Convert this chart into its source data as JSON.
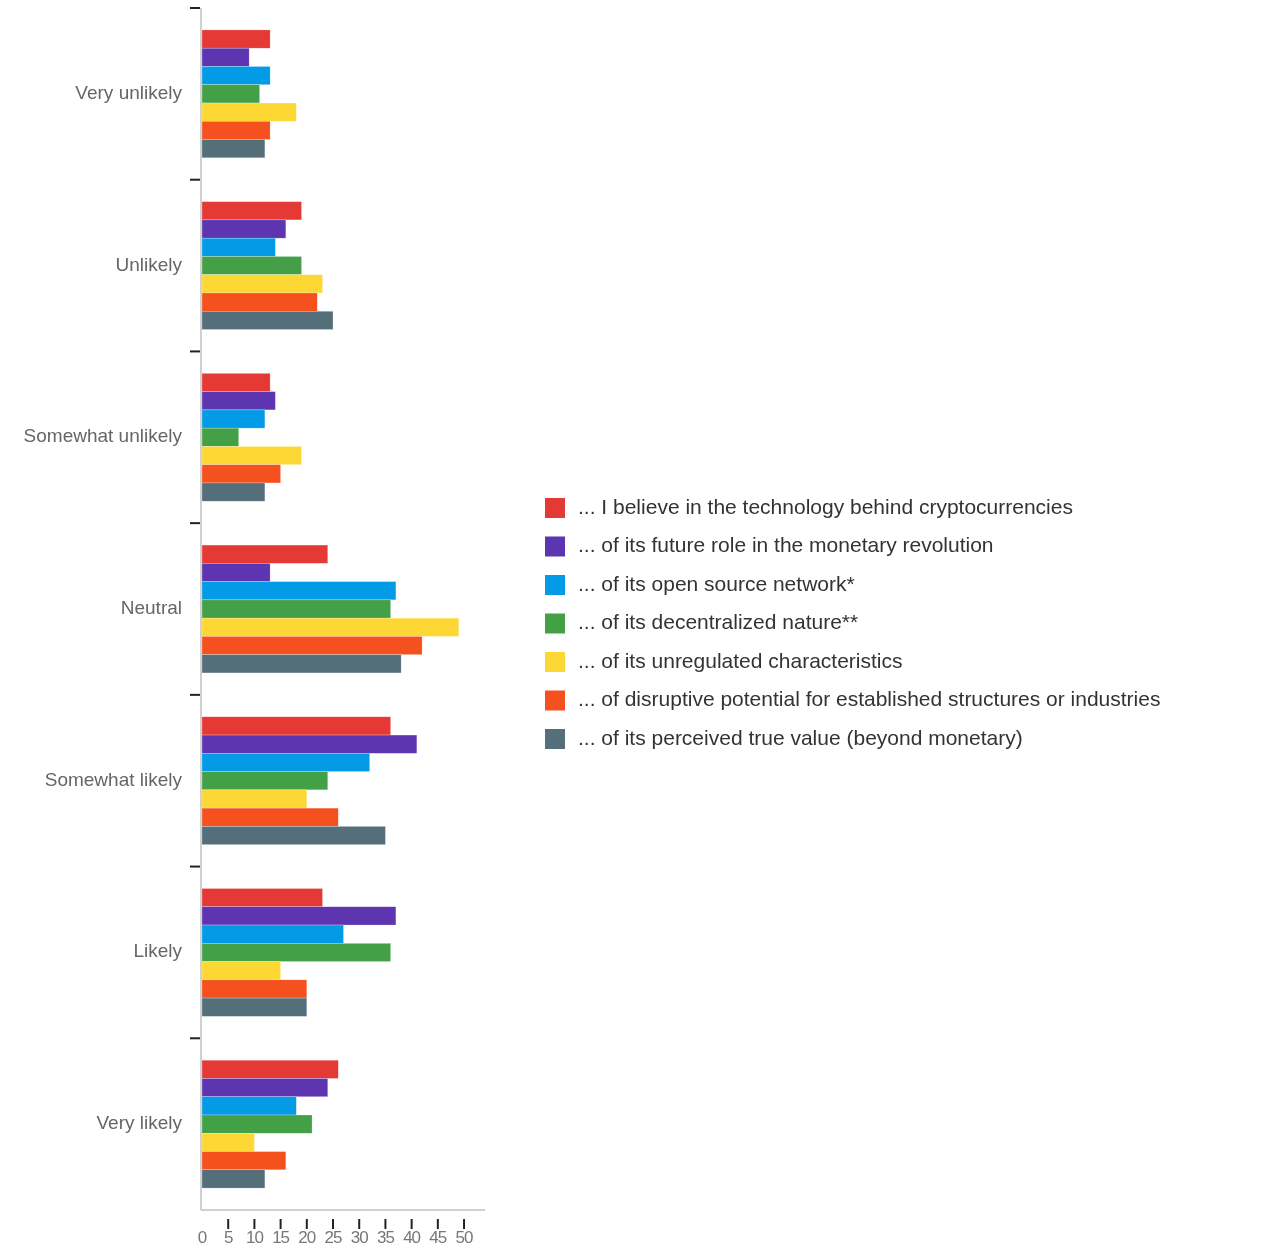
{
  "chart_data": {
    "type": "bar",
    "orientation": "horizontal",
    "categories": [
      "Very unlikely",
      "Unlikely",
      "Somewhat unlikely",
      "Neutral",
      "Somewhat likely",
      "Likely",
      "Very likely"
    ],
    "series": [
      {
        "name": "... I believe in the technology behind cryptocurrencies",
        "color": "#e53935",
        "values": [
          13,
          19,
          13,
          24,
          36,
          23,
          26
        ]
      },
      {
        "name": "... of its future role in the monetary revolution",
        "color": "#5e35b1",
        "values": [
          9,
          16,
          14,
          13,
          41,
          37,
          24
        ]
      },
      {
        "name": "... of its open source network*",
        "color": "#039be5",
        "values": [
          13,
          14,
          12,
          37,
          32,
          27,
          18
        ]
      },
      {
        "name": "... of its decentralized nature**",
        "color": "#43a047",
        "values": [
          11,
          19,
          7,
          36,
          24,
          36,
          21
        ]
      },
      {
        "name": "... of its unregulated characteristics",
        "color": "#fdd835",
        "values": [
          18,
          23,
          19,
          49,
          20,
          15,
          10
        ]
      },
      {
        "name": "... of disruptive potential for established structures or industries",
        "color": "#f4511e",
        "values": [
          13,
          22,
          15,
          42,
          26,
          20,
          16
        ]
      },
      {
        "name": "... of its perceived true value (beyond monetary)",
        "color": "#546e7a",
        "values": [
          12,
          25,
          12,
          38,
          35,
          20,
          12
        ]
      }
    ],
    "xlim": [
      0,
      54
    ],
    "xticks": [
      0,
      5,
      10,
      15,
      20,
      25,
      30,
      35,
      40,
      45,
      50
    ],
    "grid": false,
    "legend": "right"
  }
}
